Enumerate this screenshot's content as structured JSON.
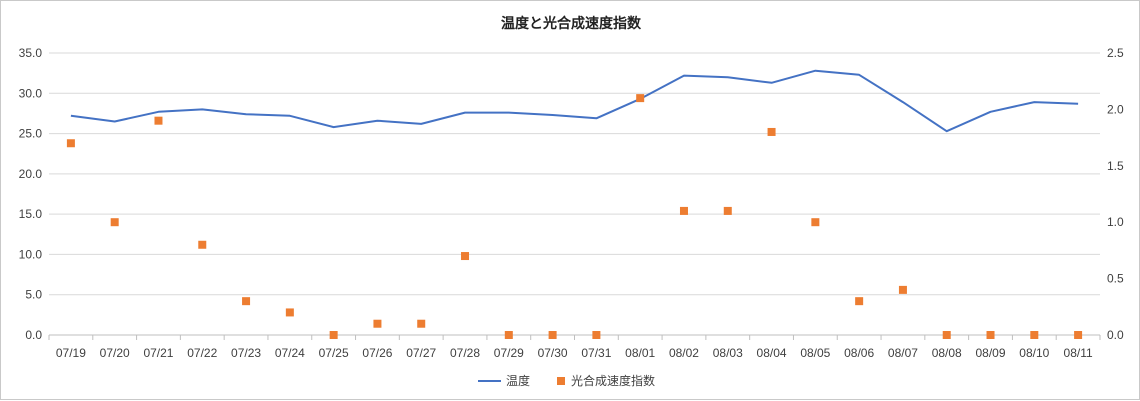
{
  "chart_data": {
    "type": "line",
    "title": "温度と光合成速度指数",
    "categories": [
      "07/19",
      "07/20",
      "07/21",
      "07/22",
      "07/23",
      "07/24",
      "07/25",
      "07/26",
      "07/27",
      "07/28",
      "07/29",
      "07/30",
      "07/31",
      "08/01",
      "08/02",
      "08/03",
      "08/04",
      "08/05",
      "08/06",
      "08/07",
      "08/08",
      "08/09",
      "08/10",
      "08/11"
    ],
    "series": [
      {
        "name": "温度",
        "chart_type": "line",
        "axis": "left",
        "color": "#4472C4",
        "values": [
          27.2,
          26.5,
          27.7,
          28.0,
          27.4,
          27.2,
          25.8,
          26.6,
          26.2,
          27.6,
          27.6,
          27.3,
          26.9,
          29.3,
          32.2,
          32.0,
          31.3,
          32.8,
          32.3,
          28.9,
          25.3,
          27.7,
          28.9,
          28.7
        ]
      },
      {
        "name": "光合成速度指数",
        "chart_type": "scatter",
        "axis": "right",
        "color": "#ED7D31",
        "values": [
          1.7,
          1.0,
          1.9,
          0.8,
          0.3,
          0.2,
          0.0,
          0.1,
          0.1,
          0.7,
          0.0,
          0.0,
          0.0,
          2.1,
          1.1,
          1.1,
          1.8,
          1.0,
          0.3,
          0.4,
          0.0,
          0.0,
          0.0,
          0.0
        ]
      }
    ],
    "y_left": {
      "ylim": [
        0,
        35
      ],
      "ticks": [
        "0.0",
        "5.0",
        "10.0",
        "15.0",
        "20.0",
        "25.0",
        "30.0",
        "35.0"
      ]
    },
    "y_right": {
      "ylim": [
        0,
        2.5
      ],
      "ticks": [
        "0.0",
        "0.5",
        "1.0",
        "1.5",
        "2.0",
        "2.5"
      ]
    },
    "grid": true,
    "legend_position": "bottom"
  }
}
